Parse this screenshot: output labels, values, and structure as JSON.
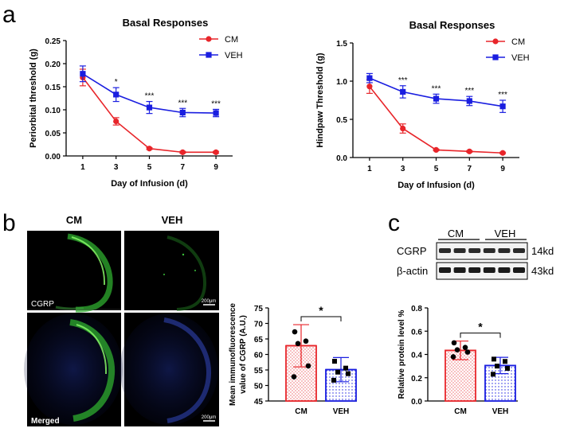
{
  "panel_labels": [
    "a",
    "b",
    "c"
  ],
  "chart_data": [
    {
      "type": "line",
      "title": "Basal Responses",
      "xlabel": "Day of  Infusion (d)",
      "ylabel": "Periorbital threshold (g)",
      "x": [
        1,
        3,
        5,
        7,
        9
      ],
      "xlim": [
        0,
        10
      ],
      "ylim": [
        0,
        0.25
      ],
      "yticks": [
        "0.00",
        "0.05",
        "0.10",
        "0.15",
        "0.20",
        "0.25"
      ],
      "xticks": [
        "1",
        "3",
        "5",
        "7",
        "9"
      ],
      "series": [
        {
          "name": "CM",
          "color": "#e8252a",
          "values": [
            0.17,
            0.075,
            0.016,
            0.008,
            0.008
          ],
          "errors": [
            0.018,
            0.008,
            0.002,
            0.002,
            0.002
          ]
        },
        {
          "name": "VEH",
          "color": "#1a1ee0",
          "values": [
            0.178,
            0.133,
            0.105,
            0.094,
            0.093
          ],
          "errors": [
            0.017,
            0.015,
            0.013,
            0.009,
            0.008
          ]
        }
      ],
      "annotations": [
        "",
        "*",
        "***",
        "***",
        "***"
      ],
      "legend": "top-right"
    },
    {
      "type": "line",
      "title": "Basal Responses",
      "xlabel": "Day of  Infusion (d)",
      "ylabel": "Hindpaw Threshold (g)",
      "x": [
        1,
        3,
        5,
        7,
        9
      ],
      "xlim": [
        0,
        10
      ],
      "ylim": [
        0,
        1.5
      ],
      "yticks": [
        "0.0",
        "0.5",
        "1.0",
        "1.5"
      ],
      "xticks": [
        "1",
        "3",
        "5",
        "7",
        "9"
      ],
      "series": [
        {
          "name": "CM",
          "color": "#e8252a",
          "values": [
            0.93,
            0.38,
            0.1,
            0.08,
            0.06
          ],
          "errors": [
            0.09,
            0.06,
            0.01,
            0.01,
            0.01
          ]
        },
        {
          "name": "VEH",
          "color": "#1a1ee0",
          "values": [
            1.04,
            0.86,
            0.77,
            0.74,
            0.67
          ],
          "errors": [
            0.06,
            0.08,
            0.06,
            0.06,
            0.08
          ]
        }
      ],
      "annotations": [
        "",
        "***",
        "***",
        "***",
        "***"
      ],
      "legend": "top-right"
    },
    {
      "type": "bar",
      "ylabel_lines": [
        "Mean immunofluorescence",
        "value of CGRP (A.U.)"
      ],
      "categories": [
        "CM",
        "VEH"
      ],
      "values": [
        62.8,
        55.1
      ],
      "errors": [
        6.8,
        3.9
      ],
      "ylim": [
        45,
        75
      ],
      "yticks": [
        "45",
        "50",
        "55",
        "60",
        "65",
        "70",
        "75"
      ],
      "points": [
        [
          67.3,
          64.3,
          63.5,
          56.3,
          52.8
        ],
        [
          57.8,
          55.6,
          54.3,
          53.8,
          51.7
        ]
      ],
      "significance": "*",
      "colors": [
        "#e8252a",
        "#1a1ee0"
      ]
    },
    {
      "type": "bar",
      "ylabel": "Relative protein level %",
      "categories": [
        "CM",
        "VEH"
      ],
      "values": [
        0.435,
        0.305
      ],
      "errors": [
        0.08,
        0.07
      ],
      "ylim": [
        0,
        0.8
      ],
      "yticks": [
        "0.0",
        "0.2",
        "0.4",
        "0.6",
        "0.8"
      ],
      "points": [
        [
          0.5,
          0.46,
          0.44,
          0.42,
          0.38
        ],
        [
          0.36,
          0.34,
          0.3,
          0.28,
          0.23
        ]
      ],
      "significance": "*",
      "colors": [
        "#e8252a",
        "#1a1ee0"
      ]
    }
  ],
  "micrographs": {
    "column_headers": [
      "CM",
      "VEH"
    ],
    "row_labels": [
      "CGRP",
      "Merged"
    ],
    "scale_bar": "200μm"
  },
  "western_blot": {
    "group_labels": [
      "CM",
      "VEH"
    ],
    "row_labels": [
      "CGRP",
      "β-actin"
    ],
    "sizes": [
      "14kd",
      "43kd"
    ]
  }
}
